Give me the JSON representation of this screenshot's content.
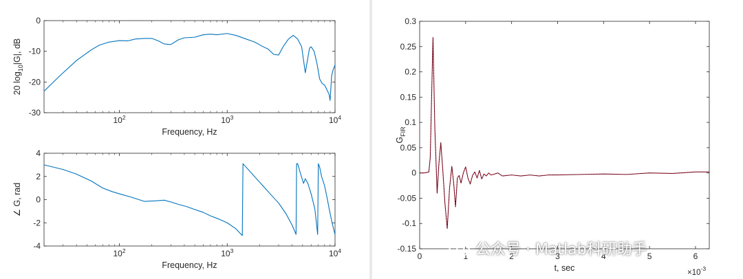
{
  "watermark": {
    "text": "公众号 · Matlab科研助手"
  },
  "colors": {
    "axis": "#262626",
    "line_blue": "#0072BD",
    "line_red": "#A2142F",
    "line_black": "#000000"
  },
  "chart_data": [
    {
      "type": "line",
      "xscale": "log",
      "xlim": [
        20,
        10000
      ],
      "ylim": [
        -30,
        0
      ],
      "yticks": [
        0,
        -10,
        -20,
        -30
      ],
      "xticks": [
        100,
        1000,
        10000
      ],
      "xlabel": "Frequency, Hz",
      "ylabel": "20 log10|G|, dB",
      "series": [
        {
          "color": "#0072BD",
          "x": [
            20,
            28,
            40,
            55,
            65,
            80,
            100,
            120,
            140,
            170,
            200,
            230,
            260,
            300,
            350,
            400,
            500,
            600,
            700,
            800,
            1000,
            1200,
            1500,
            1800,
            2100,
            2400,
            2700,
            3000,
            3300,
            3700,
            4100,
            4500,
            4900,
            5300,
            5600,
            5800,
            6000,
            6400,
            6800,
            7200,
            7600,
            8000,
            8400,
            8800,
            9000,
            9300,
            9600,
            10000
          ],
          "y": [
            -23,
            -18,
            -13,
            -9.5,
            -8,
            -7,
            -6.5,
            -6.6,
            -6,
            -5.8,
            -5.8,
            -6.6,
            -7.6,
            -7.8,
            -6.3,
            -5.6,
            -5.4,
            -4.6,
            -4.4,
            -4.6,
            -4.2,
            -4.8,
            -6,
            -7,
            -8.3,
            -9.3,
            -11,
            -11.2,
            -8.5,
            -6,
            -4.8,
            -6,
            -8.5,
            -17,
            -12,
            -9,
            -8.5,
            -10,
            -14,
            -19,
            -20.5,
            -21,
            -22.5,
            -24,
            -26,
            -18,
            -16,
            -14.5
          ]
        }
      ]
    },
    {
      "type": "line",
      "xscale": "log",
      "xlim": [
        20,
        10000
      ],
      "ylim": [
        -4,
        4
      ],
      "yticks": [
        4,
        2,
        0,
        -2,
        -4
      ],
      "xticks": [
        100,
        1000,
        10000
      ],
      "xlabel": "Frequency, Hz",
      "ylabel": "∠ G, rad",
      "series": [
        {
          "color": "#0072BD",
          "x": [
            20,
            30,
            40,
            55,
            70,
            85,
            100,
            130,
            170,
            220,
            260,
            300,
            350,
            420,
            500,
            600,
            700,
            850,
            1000,
            1200,
            1380,
            1400,
            1600,
            2000,
            2500,
            3000,
            3500,
            4000,
            4350,
            4400,
            4500,
            4800,
            5100,
            5300,
            5600,
            6000,
            6500,
            6900,
            7000,
            7200,
            7500,
            8000,
            8500,
            9000,
            9500,
            10000
          ],
          "y": [
            3.0,
            2.6,
            2.2,
            1.6,
            1.0,
            0.7,
            0.5,
            0.2,
            -0.15,
            -0.1,
            -0.05,
            -0.2,
            -0.4,
            -0.6,
            -0.85,
            -1.1,
            -1.4,
            -1.7,
            -2.0,
            -2.5,
            -3.1,
            3.1,
            2.5,
            1.5,
            0.5,
            -0.3,
            -1.2,
            -2.2,
            -3.0,
            3.1,
            3.1,
            2.2,
            1.4,
            1.8,
            1.4,
            0.5,
            -0.8,
            -3.0,
            3.1,
            2.8,
            2.0,
            1.2,
            0.0,
            -1.2,
            -2.2,
            -3.0
          ]
        }
      ]
    },
    {
      "type": "line",
      "xlim": [
        0,
        6.3
      ],
      "ylim": [
        -0.15,
        0.3
      ],
      "yticks": [
        0.3,
        0.25,
        0.2,
        0.15,
        0.1,
        0.05,
        0,
        -0.05,
        -0.1,
        -0.15
      ],
      "xticks": [
        0,
        1,
        2,
        3,
        4,
        5,
        6
      ],
      "x_exponent": "×10^-3",
      "xlabel": "t, sec",
      "ylabel": "G_FIR",
      "series": [
        {
          "color": "#A2142F",
          "x": [
            0,
            0.1,
            0.2,
            0.23,
            0.26,
            0.29,
            0.33,
            0.38,
            0.42,
            0.46,
            0.5,
            0.55,
            0.6,
            0.65,
            0.7,
            0.74,
            0.78,
            0.82,
            0.86,
            0.9,
            0.95,
            1.0,
            1.05,
            1.1,
            1.15,
            1.2,
            1.25,
            1.3,
            1.35,
            1.4,
            1.45,
            1.5,
            1.55,
            1.6,
            1.7,
            1.8,
            1.9,
            2.0,
            2.2,
            2.4,
            2.6,
            2.8,
            3.0,
            3.5,
            4.0,
            4.5,
            5.0,
            5.5,
            6.0,
            6.3
          ],
          "y": [
            0,
            0,
            0.002,
            0.03,
            0.15,
            0.268,
            0.09,
            -0.04,
            0.02,
            0.06,
            0.01,
            -0.06,
            -0.11,
            -0.03,
            0.013,
            -0.02,
            -0.067,
            -0.01,
            -0.005,
            -0.02,
            0.0,
            0.012,
            -0.01,
            -0.022,
            -0.005,
            0.002,
            -0.01,
            0.005,
            -0.012,
            -0.002,
            -0.006,
            0.0,
            -0.004,
            -0.003,
            0.0,
            -0.006,
            -0.005,
            -0.004,
            -0.006,
            -0.004,
            -0.006,
            -0.004,
            -0.004,
            -0.003,
            -0.002,
            -0.003,
            0.0,
            -0.001,
            0.002,
            0.002
          ]
        },
        {
          "color": "#000000",
          "x": [
            0,
            0.1,
            0.2,
            0.23,
            0.26,
            0.29,
            0.33,
            0.38,
            0.42,
            0.46,
            0.5,
            0.55,
            0.6,
            0.65,
            0.7,
            0.74,
            0.78,
            0.82,
            0.86,
            0.9,
            0.95,
            1.0,
            1.05,
            1.1,
            1.15,
            1.2,
            1.25,
            1.3,
            1.35,
            1.4,
            1.45,
            1.5,
            1.55,
            1.6,
            1.7,
            1.8,
            1.9,
            2.0,
            2.2,
            2.4,
            2.6,
            2.8,
            3.0,
            3.5,
            4.0,
            4.5,
            5.0,
            5.5,
            6.0,
            6.3
          ],
          "y": [
            0,
            0,
            0.002,
            0.03,
            0.15,
            0.268,
            0.09,
            -0.04,
            0.02,
            0.06,
            0.01,
            -0.06,
            -0.11,
            -0.03,
            0.013,
            -0.02,
            -0.067,
            -0.01,
            -0.005,
            -0.02,
            0.0,
            0.012,
            -0.01,
            -0.022,
            -0.005,
            0.002,
            -0.01,
            0.005,
            -0.012,
            -0.002,
            -0.006,
            0.0,
            -0.004,
            -0.003,
            0.0,
            -0.006,
            -0.005,
            -0.004,
            -0.006,
            -0.004,
            -0.006,
            -0.004,
            -0.004,
            -0.003,
            -0.002,
            -0.003,
            0.0,
            -0.001,
            0.002,
            0.002
          ]
        }
      ]
    }
  ]
}
